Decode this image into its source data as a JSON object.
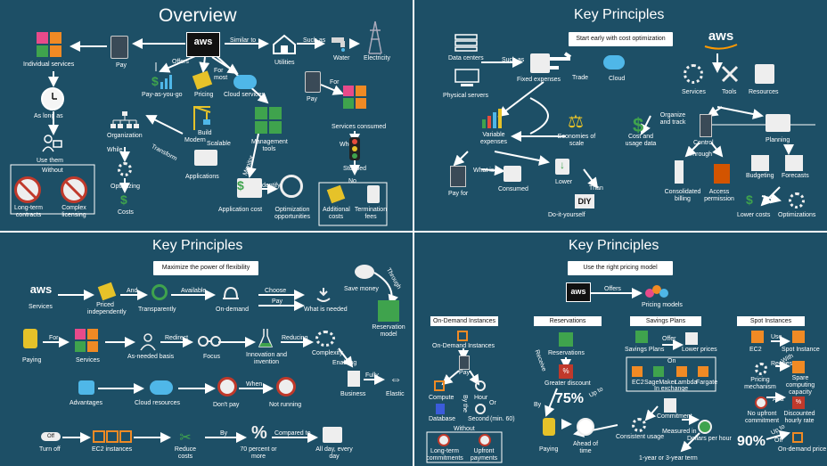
{
  "colors": {
    "background": "#1d4f66",
    "accent_orange": "#f08a24",
    "aws_orange": "#ff9900",
    "green": "#3fa34d",
    "yellow": "#e6c229",
    "red": "#c0392b"
  },
  "overview": {
    "title": "Overview",
    "aws": "aws",
    "similar_to": "Similar to",
    "such_as": "Such as",
    "utilities": "Utilities",
    "water": "Water",
    "electricity": "Electricity",
    "pay": "Pay",
    "offers": "Offers",
    "individual_services": "Individual services",
    "as_long_as": "As long as",
    "use_them": "Use them",
    "without": "Without",
    "long_term_contracts": "Long-term contracts",
    "complex_licensing": "Complex licensing",
    "pay_as_you_go": "Pay-as-you-go",
    "pricing": "Pricing",
    "for": "For",
    "most": "most",
    "cloud_services": "Cloud services",
    "pay2": "Pay",
    "for2": "For",
    "services_consumed": "Services consumed",
    "when": "When",
    "stopped": "Stopped",
    "no": "No",
    "additional_costs": "Additional costs",
    "termination_fees": "Termination fees",
    "organization": "Organization",
    "while": "While",
    "optimizing": "Optimizing",
    "costs": "Costs",
    "build": "Build",
    "modern": "Modern",
    "scalable": "Scalable",
    "applications": "Applications",
    "transform": "Transform",
    "management_tools": "Management tools",
    "monitor": "Monitor",
    "application_cost": "Application cost",
    "identify": "Identify",
    "optimization_opportunities": "Optimization opportunities"
  },
  "kp1": {
    "title": "Key Principles",
    "banner": "Start early with cost optimization",
    "aws": "aws",
    "data_centers": "Data centers",
    "physical_servers": "Physical servers",
    "such_as": "Such as",
    "fixed_expenses": "Fixed expenses",
    "trade": "Trade",
    "cloud": "Cloud",
    "services": "Services",
    "tools": "Tools",
    "resources": "Resources",
    "variable_expenses": "Variable expenses",
    "economies_of_scale": "Economies of scale",
    "organize_and_track": "Organize and track",
    "cost_and_usage_data": "Cost and usage data",
    "control": "Control",
    "planning": "Planning",
    "through": "Through",
    "budgeting": "Budgeting",
    "forecasts": "Forecasts",
    "consolidated_billing": "Consolidated billing",
    "access_permission": "Access permission",
    "lower_costs": "Lower costs",
    "optimizations": "Optimizations",
    "pay_for": "Pay for",
    "what_is": "What is",
    "consumed": "Consumed",
    "lower": "Lower",
    "than": "Than",
    "diy": "DIY",
    "do_it_yourself": "Do-it-yourself"
  },
  "kp2": {
    "title": "Key Principles",
    "banner": "Maximize the power of flexibility",
    "aws": "aws",
    "services": "Services",
    "and": "And",
    "priced_independently": "Priced independently",
    "available": "Available",
    "transparently": "Transparently",
    "on_demand": "On-demand",
    "choose": "Choose",
    "pay": "Pay",
    "what_is_needed": "What is needed",
    "save_money": "Save money",
    "through": "Through",
    "reservation_model": "Reservation model",
    "paying": "Paying",
    "for": "For",
    "services2": "Services",
    "redirect": "Redirect",
    "as_needed_basis": "As-needed basis",
    "focus": "Focus",
    "innovation_and_invention": "Innovation and invention",
    "reducing": "Reducing",
    "complexity": "Complexity",
    "enabling": "Enabling",
    "fully": "Fully",
    "business": "Business",
    "elastic": "Elastic",
    "advantages": "Advantages",
    "cloud_resources": "Cloud resources",
    "dont_pay": "Don't pay",
    "when": "When",
    "not_running": "Not running",
    "off": "Off",
    "turn_off": "Turn off",
    "ec2_instances": "EC2 instances",
    "reduce_costs": "Reduce costs",
    "by": "By",
    "percent_sign": "%",
    "seventy_percent": "70 percent or more",
    "compared_to": "Compared to",
    "all_day": "All day, every day"
  },
  "kp3": {
    "title": "Key Principles",
    "banner": "Use the right pricing model",
    "aws": "aws",
    "offers": "Offers",
    "pricing_models": "Pricing models",
    "on_demand_header": "On-Demand Instances",
    "reservations_header": "Reservations",
    "savings_plans_header": "Savings Plans",
    "spot_header": "Spot Instances",
    "on_demand_instances": "On-Demand Instances",
    "pay": "Pay",
    "compute": "Compute",
    "database": "Database",
    "by_the": "By the",
    "hour": "Hour",
    "or": "Or",
    "second": "Second",
    "min_60": "(min. 60)",
    "without": "Without",
    "long_term_commitments": "Long-term commitments",
    "upfront_payments": "Upfront payments",
    "reservations": "Reservations",
    "receive": "Receive",
    "greater_discount": "Greater discount",
    "up_to": "Up to",
    "seventy_five": "75%",
    "by": "By",
    "paying": "Paying",
    "ahead_of_time": "Ahead of time",
    "savings_plans": "Savings Plans",
    "offer": "Offer",
    "lower_prices": "Lower prices",
    "on": "On",
    "ec2": "EC2",
    "sagemaker": "SageMaker",
    "lambda": "Lambda",
    "fargate": "Fargate",
    "in_exchange": "In exchange",
    "commitment": "Commitment",
    "measured_in": "Measured in",
    "consistent_usage": "Consistent usage",
    "dollars_per_hour": "Dollars per hour",
    "one_or_three_year": "1-year or 3-year term",
    "use": "Use",
    "ec2_spot": "EC2",
    "spot_instance": "Spot Instance",
    "pricing_mechanism": "Pricing mechanism",
    "request": "Request",
    "spare_capacity": "Spare computing capacity",
    "with": "With",
    "no_upfront_commitment": "No upfront commitment",
    "at_a": "At a",
    "discounted_hourly_rate": "Discounted hourly rate",
    "up_to2": "Up to",
    "ninety": "90%",
    "off": "Off",
    "on_demand_price": "On-demand price"
  }
}
